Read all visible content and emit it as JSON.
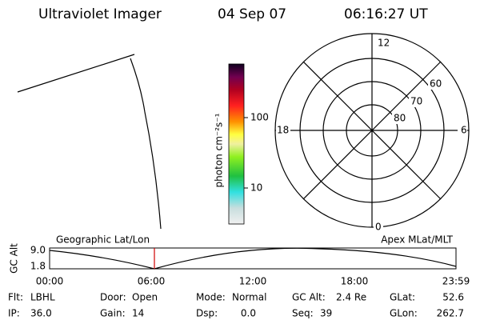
{
  "header": {
    "title": "Ultraviolet Imager",
    "date": "04 Sep 07",
    "time": "06:16:27 UT"
  },
  "colorbar": {
    "label": "photon cm⁻²s⁻¹",
    "ticks": [
      "100",
      "10"
    ]
  },
  "polar": {
    "mlt_labels": [
      "12",
      "6",
      "18",
      "0"
    ],
    "lat_labels": [
      "60",
      "70",
      "80"
    ]
  },
  "strip": {
    "y_label": "GC Alt",
    "y_ticks": [
      "9.0",
      "1.8"
    ],
    "left_title": "Geographic Lat/Lon",
    "right_title": "Apex MLat/MLT",
    "x_ticks": [
      "00:00",
      "06:00",
      "12:00",
      "18:00",
      "23:59"
    ]
  },
  "info": {
    "rows": [
      [
        {
          "label": "Flt:",
          "value": "LBHL"
        },
        {
          "label": "Door:",
          "value": "Open"
        },
        {
          "label": "Mode:",
          "value": "Normal"
        },
        {
          "label": "GC Alt:",
          "value": "2.4 Re"
        },
        {
          "label": "GLat:",
          "value": "52.6"
        }
      ],
      [
        {
          "label": "IP:",
          "value": "36.0"
        },
        {
          "label": "Gain:",
          "value": "14"
        },
        {
          "label": "Dsp:",
          "value": "0.0"
        },
        {
          "label": "Seq:",
          "value": "39"
        },
        {
          "label": "GLon:",
          "value": "262.7"
        }
      ]
    ]
  }
}
